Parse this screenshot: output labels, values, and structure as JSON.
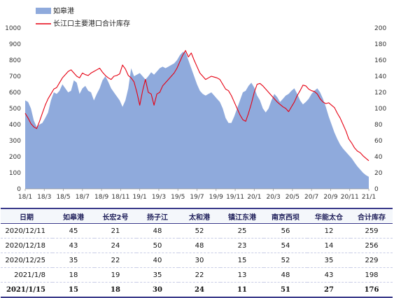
{
  "chart_data": {
    "type": "area+line",
    "title": "",
    "xlabel": "",
    "ylabel_left": "",
    "ylabel_right": "",
    "legend": [
      "如皋港",
      "长江口主要港口合计库存"
    ],
    "legend_position": "top-left",
    "x_ticks": [
      "18/1",
      "18/3",
      "18/5",
      "18/7",
      "18/9",
      "18/11",
      "19/1",
      "19/3",
      "19/5",
      "19/7",
      "19/9",
      "19/11",
      "20/1",
      "20/3",
      "20/5",
      "20/7",
      "20/9",
      "20/11",
      "21/1"
    ],
    "y_left": {
      "min": 0,
      "max": 1000,
      "ticks": [
        0,
        100,
        200,
        300,
        400,
        500,
        600,
        700,
        800,
        900,
        1000
      ]
    },
    "y_right": {
      "min": 0,
      "max": 200,
      "ticks": [
        0,
        20,
        40,
        60,
        80,
        100,
        120,
        140,
        160,
        180,
        200
      ]
    },
    "series": [
      {
        "name": "长江口主要港口合计库存",
        "axis": "left",
        "kind": "line",
        "color": "#e60012",
        "points": [
          [
            0,
            470
          ],
          [
            0.3,
            440
          ],
          [
            0.6,
            405
          ],
          [
            0.9,
            385
          ],
          [
            1.2,
            375
          ],
          [
            1.5,
            420
          ],
          [
            1.8,
            470
          ],
          [
            2.1,
            520
          ],
          [
            2.4,
            560
          ],
          [
            2.7,
            590
          ],
          [
            3.0,
            620
          ],
          [
            3.3,
            630
          ],
          [
            3.6,
            660
          ],
          [
            3.9,
            690
          ],
          [
            4.2,
            710
          ],
          [
            4.5,
            730
          ],
          [
            4.8,
            740
          ],
          [
            5.1,
            720
          ],
          [
            5.4,
            700
          ],
          [
            5.7,
            690
          ],
          [
            6.0,
            720
          ],
          [
            6.3,
            710
          ],
          [
            6.6,
            705
          ],
          [
            6.9,
            720
          ],
          [
            7.2,
            730
          ],
          [
            7.5,
            740
          ],
          [
            7.8,
            750
          ],
          [
            8.1,
            725
          ],
          [
            8.4,
            705
          ],
          [
            8.7,
            690
          ],
          [
            9.0,
            680
          ],
          [
            9.3,
            700
          ],
          [
            9.6,
            705
          ],
          [
            9.9,
            715
          ],
          [
            10.2,
            770
          ],
          [
            10.5,
            745
          ],
          [
            10.8,
            705
          ],
          [
            11.1,
            690
          ],
          [
            11.4,
            665
          ],
          [
            11.7,
            600
          ],
          [
            12.0,
            520
          ],
          [
            12.3,
            610
          ],
          [
            12.6,
            680
          ],
          [
            12.9,
            600
          ],
          [
            13.2,
            590
          ],
          [
            13.5,
            520
          ],
          [
            13.8,
            590
          ],
          [
            14.1,
            600
          ],
          [
            14.4,
            640
          ],
          [
            14.7,
            660
          ],
          [
            15.0,
            680
          ],
          [
            15.3,
            700
          ],
          [
            15.6,
            720
          ],
          [
            15.9,
            750
          ],
          [
            16.2,
            790
          ],
          [
            16.5,
            830
          ],
          [
            16.8,
            860
          ],
          [
            17.1,
            820
          ],
          [
            17.4,
            845
          ],
          [
            17.7,
            800
          ],
          [
            18.0,
            760
          ],
          [
            18.3,
            720
          ],
          [
            18.6,
            700
          ],
          [
            18.9,
            680
          ],
          [
            19.2,
            690
          ],
          [
            19.5,
            700
          ],
          [
            19.8,
            695
          ],
          [
            20.1,
            690
          ],
          [
            20.4,
            680
          ],
          [
            20.7,
            650
          ],
          [
            21.0,
            620
          ],
          [
            21.3,
            610
          ],
          [
            21.6,
            580
          ],
          [
            21.9,
            540
          ],
          [
            22.2,
            500
          ],
          [
            22.5,
            460
          ],
          [
            22.8,
            430
          ],
          [
            23.1,
            420
          ],
          [
            23.4,
            470
          ],
          [
            23.7,
            530
          ],
          [
            24.0,
            600
          ],
          [
            24.3,
            650
          ],
          [
            24.6,
            655
          ],
          [
            24.9,
            640
          ],
          [
            25.2,
            620
          ],
          [
            25.5,
            600
          ],
          [
            25.8,
            580
          ],
          [
            26.1,
            560
          ],
          [
            26.4,
            540
          ],
          [
            26.7,
            525
          ],
          [
            27.0,
            510
          ],
          [
            27.3,
            500
          ],
          [
            27.6,
            480
          ],
          [
            27.9,
            510
          ],
          [
            28.2,
            540
          ],
          [
            28.5,
            580
          ],
          [
            28.8,
            610
          ],
          [
            29.1,
            645
          ],
          [
            29.4,
            640
          ],
          [
            29.7,
            620
          ],
          [
            30.0,
            610
          ],
          [
            30.3,
            605
          ],
          [
            30.6,
            590
          ],
          [
            30.9,
            560
          ],
          [
            31.2,
            540
          ],
          [
            31.5,
            530
          ],
          [
            31.8,
            535
          ],
          [
            32.1,
            520
          ],
          [
            32.4,
            505
          ],
          [
            32.7,
            470
          ],
          [
            33.0,
            440
          ],
          [
            33.3,
            400
          ],
          [
            33.6,
            360
          ],
          [
            33.9,
            310
          ],
          [
            34.2,
            285
          ],
          [
            34.5,
            255
          ],
          [
            34.8,
            235
          ],
          [
            35.1,
            225
          ],
          [
            35.4,
            205
          ],
          [
            35.7,
            190
          ],
          [
            36.0,
            175
          ]
        ]
      },
      {
        "name": "如皋港",
        "axis": "right",
        "kind": "area",
        "color": "#8faadc",
        "points": [
          [
            0,
            110
          ],
          [
            0.3,
            108
          ],
          [
            0.6,
            100
          ],
          [
            0.9,
            85
          ],
          [
            1.2,
            77
          ],
          [
            1.5,
            80
          ],
          [
            1.8,
            82
          ],
          [
            2.1,
            88
          ],
          [
            2.4,
            95
          ],
          [
            2.7,
            110
          ],
          [
            3.0,
            120
          ],
          [
            3.3,
            118
          ],
          [
            3.6,
            122
          ],
          [
            3.9,
            130
          ],
          [
            4.2,
            125
          ],
          [
            4.5,
            120
          ],
          [
            4.8,
            122
          ],
          [
            5.1,
            135
          ],
          [
            5.4,
            132
          ],
          [
            5.7,
            118
          ],
          [
            6.0,
            125
          ],
          [
            6.3,
            128
          ],
          [
            6.6,
            122
          ],
          [
            6.9,
            120
          ],
          [
            7.2,
            110
          ],
          [
            7.5,
            118
          ],
          [
            7.8,
            125
          ],
          [
            8.1,
            135
          ],
          [
            8.4,
            140
          ],
          [
            8.7,
            133
          ],
          [
            9.0,
            125
          ],
          [
            9.3,
            120
          ],
          [
            9.6,
            115
          ],
          [
            9.9,
            110
          ],
          [
            10.2,
            102
          ],
          [
            10.5,
            110
          ],
          [
            10.8,
            125
          ],
          [
            11.1,
            150
          ],
          [
            11.4,
            140
          ],
          [
            11.7,
            142
          ],
          [
            12.0,
            144
          ],
          [
            12.3,
            140
          ],
          [
            12.6,
            136
          ],
          [
            12.9,
            140
          ],
          [
            13.2,
            145
          ],
          [
            13.5,
            142
          ],
          [
            13.8,
            146
          ],
          [
            14.1,
            150
          ],
          [
            14.4,
            152
          ],
          [
            14.7,
            150
          ],
          [
            15.0,
            152
          ],
          [
            15.3,
            154
          ],
          [
            15.6,
            156
          ],
          [
            15.9,
            160
          ],
          [
            16.2,
            166
          ],
          [
            16.5,
            170
          ],
          [
            16.8,
            170
          ],
          [
            17.1,
            160
          ],
          [
            17.4,
            150
          ],
          [
            17.7,
            140
          ],
          [
            18.0,
            130
          ],
          [
            18.3,
            122
          ],
          [
            18.6,
            118
          ],
          [
            18.9,
            116
          ],
          [
            19.2,
            118
          ],
          [
            19.5,
            120
          ],
          [
            19.8,
            116
          ],
          [
            20.1,
            112
          ],
          [
            20.4,
            108
          ],
          [
            20.7,
            100
          ],
          [
            21.0,
            88
          ],
          [
            21.3,
            82
          ],
          [
            21.6,
            82
          ],
          [
            21.9,
            90
          ],
          [
            22.2,
            100
          ],
          [
            22.5,
            110
          ],
          [
            22.8,
            120
          ],
          [
            23.1,
            122
          ],
          [
            23.4,
            128
          ],
          [
            23.7,
            132
          ],
          [
            24.0,
            126
          ],
          [
            24.3,
            116
          ],
          [
            24.6,
            110
          ],
          [
            24.9,
            100
          ],
          [
            25.2,
            95
          ],
          [
            25.5,
            100
          ],
          [
            25.8,
            110
          ],
          [
            26.1,
            118
          ],
          [
            26.4,
            114
          ],
          [
            26.7,
            108
          ],
          [
            27.0,
            112
          ],
          [
            27.3,
            116
          ],
          [
            27.6,
            118
          ],
          [
            27.9,
            122
          ],
          [
            28.2,
            125
          ],
          [
            28.5,
            118
          ],
          [
            28.8,
            110
          ],
          [
            29.1,
            105
          ],
          [
            29.4,
            108
          ],
          [
            29.7,
            112
          ],
          [
            30.0,
            118
          ],
          [
            30.3,
            122
          ],
          [
            30.6,
            125
          ],
          [
            30.9,
            120
          ],
          [
            31.2,
            112
          ],
          [
            31.5,
            102
          ],
          [
            31.8,
            90
          ],
          [
            32.1,
            80
          ],
          [
            32.4,
            70
          ],
          [
            32.7,
            62
          ],
          [
            33.0,
            55
          ],
          [
            33.3,
            50
          ],
          [
            33.6,
            46
          ],
          [
            33.9,
            42
          ],
          [
            34.2,
            38
          ],
          [
            34.5,
            33
          ],
          [
            34.8,
            28
          ],
          [
            35.1,
            24
          ],
          [
            35.4,
            20
          ],
          [
            35.7,
            17
          ],
          [
            36.0,
            15
          ]
        ]
      }
    ]
  },
  "table": {
    "headers": [
      "日期",
      "如皋港",
      "长宏2号",
      "扬子江",
      "太和港",
      "镇江东港",
      "南京西坝",
      "华能太仓",
      "合计库存"
    ],
    "rows": [
      [
        "2020/12/11",
        "45",
        "21",
        "48",
        "52",
        "25",
        "56",
        "12",
        "259"
      ],
      [
        "2020/12/18",
        "43",
        "24",
        "50",
        "48",
        "23",
        "54",
        "14",
        "256"
      ],
      [
        "2020/12/25",
        "35",
        "22",
        "40",
        "30",
        "15",
        "52",
        "35",
        "229"
      ],
      [
        "2021/1/8",
        "18",
        "19",
        "35",
        "22",
        "13",
        "48",
        "43",
        "198"
      ],
      [
        "2021/1/15",
        "15",
        "18",
        "30",
        "24",
        "11",
        "51",
        "27",
        "176"
      ]
    ]
  }
}
